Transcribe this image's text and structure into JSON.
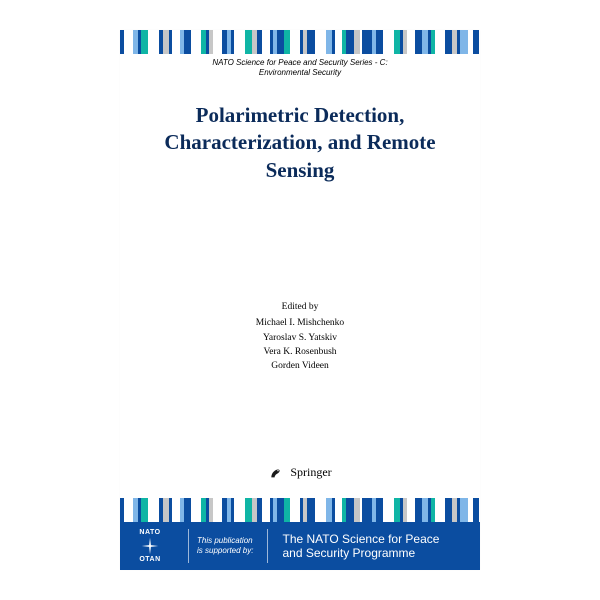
{
  "series": {
    "line1": "NATO Science for Peace and Security Series - C:",
    "line2": "Environmental Security",
    "color": "#1a1a1a",
    "fontsize": 8
  },
  "title": {
    "text": "Polarimetric Detection, Characterization, and Remote Sensing",
    "color": "#0b2b5a",
    "fontsize": 21
  },
  "editors": {
    "heading": "Edited by",
    "names": [
      "Michael I. Mishchenko",
      "Yaroslav S. Yatskiv",
      "Vera K. Rosenbush",
      "Gorden Videen"
    ],
    "color": "#1a1a1a"
  },
  "publisher": {
    "name": "Springer",
    "logo": "horse-icon",
    "color": "#1a1a1a"
  },
  "footer": {
    "background": "#0b4da0",
    "nato_top": "NATO",
    "nato_bottom": "OTAN",
    "pub_by_line1": "This publication",
    "pub_by_line2": "is supported by:",
    "programme_line1": "The NATO Science for Peace",
    "programme_line2": "and Security Programme"
  },
  "barcode": {
    "colors": [
      "#0b4da0",
      "#ffffff",
      "#7fb6e8",
      "#0b4da0",
      "#0fb5a5",
      "#ffffff",
      "#0b4da0",
      "#c7c7c7",
      "#0b4da0",
      "#ffffff",
      "#7fb6e8",
      "#0b4da0",
      "#ffffff",
      "#0fb5a5",
      "#0b4da0",
      "#c7c7c7",
      "#ffffff",
      "#0b4da0",
      "#7fb6e8",
      "#0b4da0",
      "#ffffff",
      "#0fb5a5",
      "#c7c7c7",
      "#0b4da0",
      "#ffffff",
      "#0b4da0",
      "#7fb6e8",
      "#0b4da0",
      "#0fb5a5",
      "#ffffff",
      "#0b4da0",
      "#c7c7c7",
      "#0b4da0",
      "#ffffff",
      "#7fb6e8",
      "#0b4da0",
      "#ffffff",
      "#0fb5a5",
      "#0b4da0",
      "#c7c7c7",
      "#ffffff",
      "#0b4da0",
      "#7fb6e8",
      "#0b4da0",
      "#ffffff",
      "#0fb5a5",
      "#0b4da0",
      "#c7c7c7",
      "#ffffff",
      "#0b4da0",
      "#7fb6e8",
      "#0b4da0",
      "#0fb5a5",
      "#ffffff",
      "#0b4da0",
      "#c7c7c7",
      "#0b4da0",
      "#7fb6e8",
      "#ffffff",
      "#0b4da0"
    ],
    "widths": [
      3,
      6,
      4,
      2,
      5,
      8,
      3,
      4,
      2,
      6,
      3,
      5,
      7,
      4,
      2,
      3,
      6,
      4,
      3,
      2,
      8,
      5,
      3,
      4,
      6,
      2,
      3,
      5,
      4,
      7,
      2,
      3,
      6,
      8,
      4,
      2,
      5,
      3,
      6,
      4,
      2,
      7,
      3,
      5,
      8,
      4,
      2,
      3,
      6,
      5,
      4,
      2,
      3,
      7,
      5,
      4,
      2,
      6,
      3,
      5
    ]
  }
}
